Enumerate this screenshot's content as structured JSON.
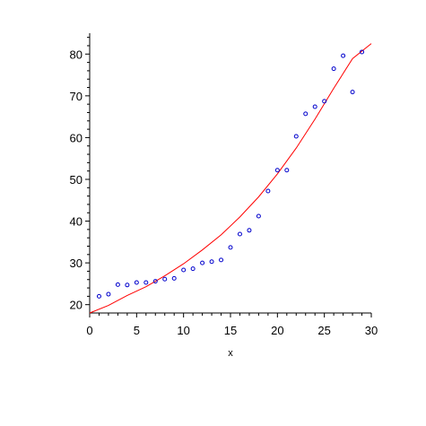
{
  "chart_data": {
    "type": "scatter",
    "title": "",
    "xlabel": "x",
    "ylabel": "",
    "xlim": [
      0,
      30
    ],
    "ylim": [
      18,
      85
    ],
    "grid": false,
    "legend": "none",
    "x_ticks": [
      0,
      5,
      10,
      15,
      20,
      25,
      30
    ],
    "y_ticks": [
      20,
      30,
      40,
      50,
      60,
      70,
      80
    ],
    "series": [
      {
        "kind": "points",
        "color": "#0000cc",
        "x": [
          1,
          2,
          3,
          4,
          5,
          6,
          7,
          8,
          9,
          10,
          11,
          12,
          13,
          14,
          15,
          16,
          17,
          18,
          19,
          20,
          21,
          22,
          23,
          24,
          25,
          26,
          27,
          28,
          29
        ],
        "y": [
          22.0,
          22.5,
          24.8,
          24.7,
          25.3,
          25.3,
          25.6,
          26.1,
          26.3,
          28.3,
          28.6,
          30.0,
          30.3,
          30.7,
          33.7,
          36.9,
          37.8,
          41.2,
          47.2,
          52.2,
          52.2,
          60.3,
          65.7,
          67.4,
          68.7,
          76.5,
          79.6,
          70.9,
          80.5
        ]
      },
      {
        "kind": "curve",
        "color": "#ff0000",
        "x": [
          0,
          2,
          4,
          6,
          8,
          10,
          12,
          14,
          16,
          18,
          20,
          22,
          24,
          26,
          28,
          30
        ],
        "y": [
          18.0,
          19.8,
          22.2,
          24.3,
          26.9,
          29.8,
          33.1,
          36.7,
          41.0,
          45.8,
          51.3,
          57.5,
          64.4,
          71.8,
          78.9,
          82.5
        ]
      }
    ]
  }
}
